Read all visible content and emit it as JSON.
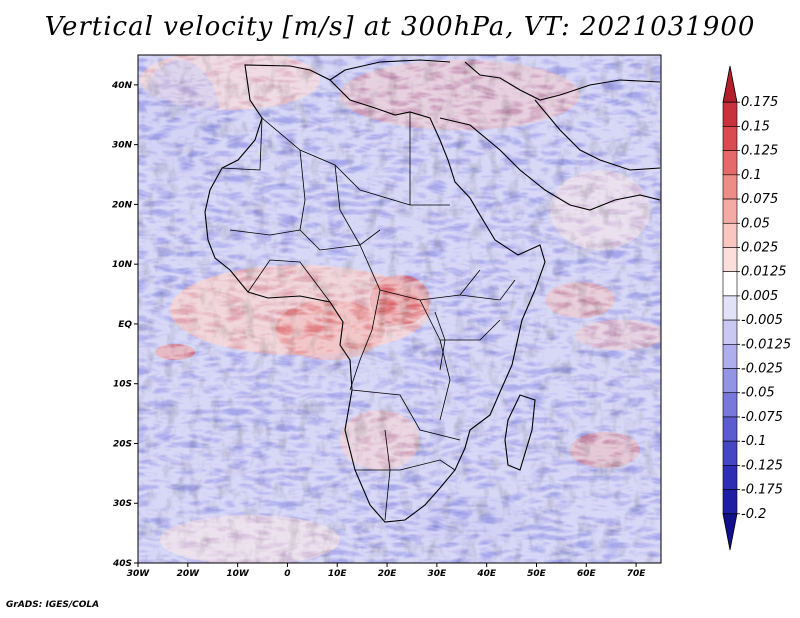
{
  "title": "Vertical velocity [m/s] at 300hPa, VT: 2021031900",
  "credit": "GrADS: IGES/COLA",
  "map": {
    "lon_range": [
      -30,
      75
    ],
    "lat_range": [
      -40,
      45
    ],
    "lat_ticks": [
      "40N",
      "30N",
      "20N",
      "10N",
      "EQ",
      "10S",
      "20S",
      "30S",
      "40S"
    ],
    "lon_ticks": [
      "30W",
      "20W",
      "10W",
      "0",
      "10E",
      "20E",
      "30E",
      "40E",
      "50E",
      "60E",
      "70E"
    ]
  },
  "colorbar": {
    "labels": [
      "0.175",
      "0.15",
      "0.125",
      "0.1",
      "0.075",
      "0.05",
      "0.025",
      "0.0125",
      "0.005",
      "-0.005",
      "-0.0125",
      "-0.025",
      "-0.05",
      "-0.075",
      "-0.1",
      "-0.125",
      "-0.175",
      "-0.2"
    ],
    "colors": [
      "#b41e2a",
      "#c8323c",
      "#d84b50",
      "#e46a6a",
      "#ee8c88",
      "#f5aaa4",
      "#f9c6c0",
      "#fcdedb",
      "#ffffff",
      "#e1e1f8",
      "#c8c8f2",
      "#aeaeee",
      "#9494e6",
      "#7878dc",
      "#5c5cd0",
      "#4646c4",
      "#2e2eb4",
      "#1e1ea4",
      "#10108c"
    ]
  }
}
